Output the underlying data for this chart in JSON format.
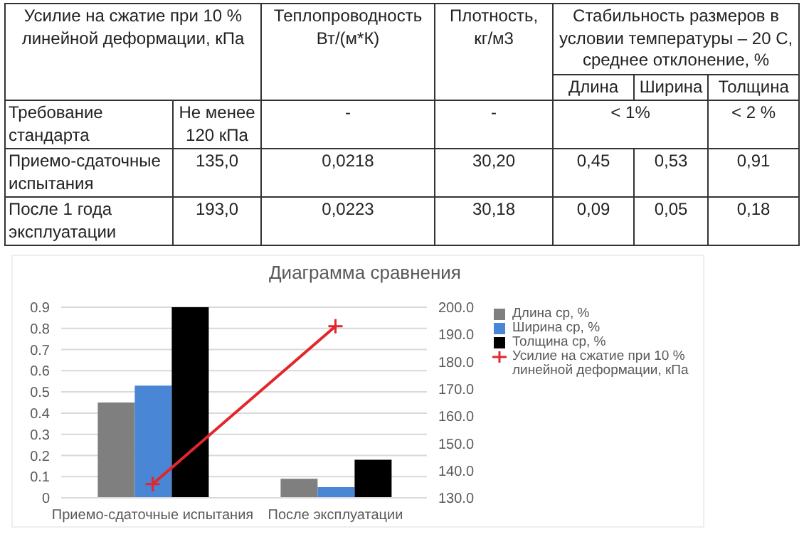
{
  "chart_data": [
    {
      "type": "other",
      "annotations": [
        "Усилие на сжатие при 10 % линейной деформации, кПа",
        "Теплопроводность Вт/(м*К)",
        "Плотность, кг/м3",
        "Стабильность размеров в условии температуры – 20 С, среднее отклонение, %",
        "Длина",
        "Ширина",
        "Толщина",
        "Требование стандарта",
        "Не менее 120 кПа",
        "-",
        "-",
        "< 1%",
        "< 2 %",
        "Приемо-сдаточные испытания",
        "135,0",
        "0,0218",
        "30,20",
        "0,45",
        "0,53",
        "0,91",
        "После 1 года эксплуатации",
        "193,0",
        "0,0223",
        "30,18",
        "0,09",
        "0,05",
        "0,18"
      ]
    },
    {
      "type": "bar",
      "title": "Диаграмма сравнения",
      "categories": [
        "Приемо-сдаточные испытания",
        "После эксплуатации"
      ],
      "series": [
        {
          "name": "Длина ср, %",
          "color": "#7f7f7f",
          "values": [
            0.45,
            0.09
          ]
        },
        {
          "name": "Ширина ср, %",
          "color": "#4a86d6",
          "values": [
            0.53,
            0.05
          ]
        },
        {
          "name": "Толщина ср, %",
          "color": "#000000",
          "values": [
            0.9,
            0.18
          ]
        },
        {
          "name": "Усилие на сжатие при 10 % линейной деформации, кПа",
          "type": "line",
          "axis": "y2",
          "color": "#e3262b",
          "values": [
            135,
            193
          ]
        }
      ],
      "ylim": [
        0,
        0.9
      ],
      "yticks": [
        0,
        0.1,
        0.2,
        0.3,
        0.4,
        0.5,
        0.6,
        0.7,
        0.8,
        0.9
      ],
      "y2lim": [
        130,
        200
      ],
      "y2ticks": [
        {
          "value": 130,
          "label": "130.0"
        },
        {
          "value": 140,
          "label": "140.0"
        },
        {
          "value": 150,
          "label": "150.0"
        },
        {
          "value": 160,
          "label": "160.0"
        },
        {
          "value": 170,
          "label": "170.0"
        },
        {
          "value": 180,
          "label": "180.0"
        },
        {
          "value": 190,
          "label": "190.0"
        },
        {
          "value": 200,
          "label": "200.0"
        }
      ],
      "grid": "y",
      "legend": "right",
      "marker": "cross"
    }
  ]
}
